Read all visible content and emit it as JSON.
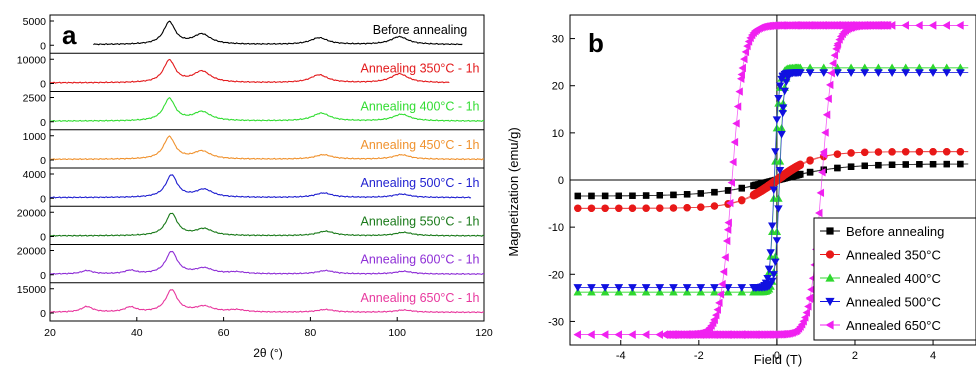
{
  "chart_data": [
    {
      "type": "line",
      "panel_label": "a",
      "xlabel": "2θ (°)",
      "xlim": [
        20,
        120
      ],
      "x_ticks": [
        20,
        40,
        60,
        80,
        100,
        120
      ],
      "series": [
        {
          "name": "Before annealing",
          "color": "#000000",
          "y_ticks": [
            "5000",
            "0"
          ],
          "peaks": [
            [
              47.5,
              1.0
            ],
            [
              55,
              0.45
            ],
            [
              82,
              0.3
            ],
            [
              100.5,
              0.35
            ]
          ],
          "x_start": 30,
          "x_end": 115
        },
        {
          "name": "Annealing 350°C - 1h",
          "color": "#e31a1c",
          "y_ticks": [
            "10000",
            "0"
          ],
          "peaks": [
            [
              47.5,
              1.0
            ],
            [
              55,
              0.5
            ],
            [
              82,
              0.35
            ],
            [
              100.5,
              0.4
            ]
          ],
          "x_start": 20,
          "x_end": 112
        },
        {
          "name": "Annealing 400°C - 1h",
          "color": "#33dd33",
          "y_ticks": [
            "2500",
            "0"
          ],
          "peaks": [
            [
              47.5,
              1.0
            ],
            [
              55,
              0.4
            ],
            [
              82.5,
              0.35
            ],
            [
              101,
              0.3
            ]
          ],
          "x_start": 20,
          "x_end": 120
        },
        {
          "name": "Annealing 450°C - 1h",
          "color": "#f0922e",
          "y_ticks": [
            "1000",
            "0"
          ],
          "peaks": [
            [
              47.5,
              1.0
            ],
            [
              55,
              0.35
            ],
            [
              83,
              0.2
            ],
            [
              101,
              0.2
            ]
          ],
          "x_start": 20,
          "x_end": 120
        },
        {
          "name": "Annealing 500°C - 1h",
          "color": "#1f1fd0",
          "y_ticks": [
            "4000",
            "0"
          ],
          "peaks": [
            [
              48,
              1.0
            ],
            [
              55.5,
              0.35
            ],
            [
              83,
              0.2
            ],
            [
              101,
              0.15
            ]
          ],
          "x_start": 20,
          "x_end": 117
        },
        {
          "name": "Annealing 550°C - 1h",
          "color": "#1a7a1a",
          "y_ticks": [
            "20000",
            "0"
          ],
          "peaks": [
            [
              48,
              1.0
            ],
            [
              55.5,
              0.3
            ],
            [
              83.5,
              0.2
            ],
            [
              101.5,
              0.15
            ]
          ],
          "x_start": 20,
          "x_end": 120
        },
        {
          "name": "Annealing 600°C - 1h",
          "color": "#8e2ed6",
          "y_ticks": [
            "20000",
            "0"
          ],
          "peaks": [
            [
              28.5,
              0.15
            ],
            [
              38.5,
              0.15
            ],
            [
              48,
              1.0
            ],
            [
              55.5,
              0.25
            ],
            [
              63,
              0.08
            ],
            [
              83.5,
              0.15
            ],
            [
              101.5,
              0.12
            ]
          ],
          "x_start": 20,
          "x_end": 120
        },
        {
          "name": "Annealing 650°C - 1h",
          "color": "#e8389e",
          "y_ticks": [
            "15000",
            "0"
          ],
          "peaks": [
            [
              28.5,
              0.25
            ],
            [
              38.5,
              0.22
            ],
            [
              48,
              1.0
            ],
            [
              55.5,
              0.25
            ],
            [
              63,
              0.1
            ],
            [
              83.5,
              0.12
            ],
            [
              101.5,
              0.1
            ]
          ],
          "x_start": 20,
          "x_end": 120
        }
      ]
    },
    {
      "type": "scatter",
      "panel_label": "b",
      "xlabel": "Field (T)",
      "ylabel": "Magnetization (emu/g)",
      "xlim": [
        -5.3,
        5.1
      ],
      "ylim": [
        -35,
        35
      ],
      "x_ticks": [
        -4,
        -2,
        0,
        2,
        4
      ],
      "y_ticks": [
        -30,
        -20,
        -10,
        0,
        10,
        20,
        30
      ],
      "legend_position": "bottom-right",
      "series": [
        {
          "name": "Before annealing",
          "marker": "square",
          "color": "#000000",
          "Ms": 3.4,
          "Hc": 0.03,
          "w": 1.6
        },
        {
          "name": "Annealed 350°C",
          "marker": "circle",
          "color": "#e81818",
          "Ms": 6.0,
          "Hc": 0.03,
          "w": 1.0
        },
        {
          "name": "Annealed 400°C",
          "marker": "triangle-up",
          "color": "#2fd82f",
          "Ms": 23.8,
          "Hc": 0.06,
          "w": 0.12
        },
        {
          "name": "Annealed 500°C",
          "marker": "triangle-down",
          "color": "#1010e0",
          "Ms": 22.8,
          "Hc": 0.07,
          "w": 0.11
        },
        {
          "name": "Annealed 650°C",
          "marker": "triangle-left",
          "color": "#f020f0",
          "Ms": 32.8,
          "Hc": 1.15,
          "w": 0.3
        }
      ]
    }
  ]
}
